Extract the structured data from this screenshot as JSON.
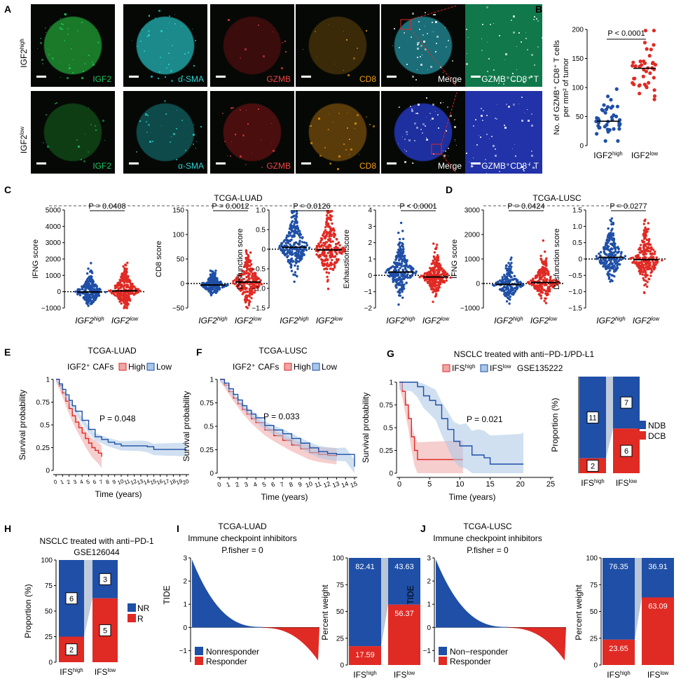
{
  "colors": {
    "blue": "#1f4fa6",
    "red": "#e02a24",
    "light_blue": "#a9c7e6",
    "light_red": "#eea6a6",
    "gray": "#b9c6d8"
  },
  "panels": {
    "A": {
      "letter": "A",
      "rows": [
        {
          "label_main": "IGF2",
          "label_sup": "high",
          "tiles": [
            {
              "label": "IGF2",
              "color": "#22c55e",
              "tint": "#1a7a2a",
              "fill": 0.55
            },
            {
              "label": "α-SMA",
              "color": "#2dd4d4",
              "tint": "#1c8a8a",
              "fill": 0.5
            },
            {
              "label": "GZMB",
              "color": "#ef4444",
              "tint": "#3a0c0c",
              "fill": 0.05
            },
            {
              "label": "CD8",
              "color": "#f59e0b",
              "tint": "#3a2a08",
              "fill": 0.06
            },
            {
              "label": "Merge",
              "color": "#ffffff",
              "tint": "#1b6e78",
              "fill": 0.6
            },
            {
              "label": "GZMB⁺CD8⁺ T",
              "color": "#ffffff",
              "tint": "#10784a",
              "fill": 0.8
            }
          ]
        },
        {
          "label_main": "IGF2",
          "label_sup": "low",
          "tiles": [
            {
              "label": "IGF2",
              "color": "#22c55e",
              "tint": "#0e3d14",
              "fill": 0.15
            },
            {
              "label": "α-SMA",
              "color": "#2dd4d4",
              "tint": "#0e4a4a",
              "fill": 0.3
            },
            {
              "label": "GZMB",
              "color": "#ef4444",
              "tint": "#4a0e0e",
              "fill": 0.25
            },
            {
              "label": "CD8",
              "color": "#f59e0b",
              "tint": "#5a3c0a",
              "fill": 0.35
            },
            {
              "label": "Merge",
              "color": "#ffffff",
              "tint": "#1e2fa0",
              "fill": 0.75
            },
            {
              "label": "GZMB⁺CD8⁺ T",
              "color": "#ffffff",
              "tint": "#2232a8",
              "fill": 0.85
            }
          ]
        }
      ]
    },
    "B": {
      "letter": "B",
      "ylabel_line1": "No. of GZMB⁺ CD8⁺ T cells",
      "ylabel_line2": "per mm² of tumor",
      "pvalue": "P < 0.0001",
      "groups": [
        {
          "main": "IGF2",
          "sup": "high"
        },
        {
          "main": "IGF2",
          "sup": "low"
        }
      ],
      "yticks": [
        "0",
        "50",
        "100",
        "150",
        "200"
      ]
    },
    "C": {
      "letter": "C",
      "title": "TCGA-LUAD"
    },
    "D": {
      "letter": "D",
      "title": "TCGA-LUSC"
    },
    "E": {
      "letter": "E",
      "title": "TCGA-LUAD",
      "legend_title": "IGF2⁺ CAFs",
      "legend_high": "High",
      "legend_low": "Low",
      "pvalue": "P = 0.048",
      "ylabel": "Survival probability",
      "xlabel": "Time (years)"
    },
    "F": {
      "letter": "F",
      "title": "TCGA-LUSC",
      "legend_title": "IGF2⁺ CAFs",
      "legend_high": "High",
      "legend_low": "Low",
      "pvalue": "P = 0.033",
      "ylabel": "Survival probability",
      "xlabel": "Time (years)"
    },
    "G": {
      "letter": "G",
      "title": "NSCLC treated with anti−PD-1/PD-L1",
      "legend_high": "IFS",
      "legend_high_sup": "high",
      "legend_low": "IFS",
      "legend_low_sup": "low",
      "dataset": "GSE135222",
      "pvalue": "P = 0.021",
      "ylabel": "Survival probability",
      "xlabel": "Time (years)",
      "bar_ylabel": "Proportion (%)",
      "bar_legend": [
        "NDB",
        "DCB"
      ]
    },
    "H": {
      "letter": "H",
      "title": "NSCLC treated with anti−PD-1",
      "dataset": "GSE126044",
      "ylabel": "Proportion (%)",
      "legend": [
        "NR",
        "R"
      ]
    },
    "I": {
      "letter": "I",
      "title": "TCGA-LUAD",
      "subtitle": "Immune checkpoint inhibitors",
      "fisher": "P.fisher = 0",
      "ylabel": "TIDE",
      "legend": [
        "Nonresponder",
        "Responder"
      ],
      "bar_ylabel": "Percent weight"
    },
    "J": {
      "letter": "J",
      "title": "TCGA-LUSC",
      "subtitle": "Immune checkpoint inhibitors",
      "fisher": "P.fisher = 0",
      "ylabel": "TIDE",
      "legend": [
        "Non−responder",
        "Responder"
      ],
      "bar_ylabel": "Percent weight"
    }
  },
  "chart_data": [
    {
      "id": "B",
      "type": "scatter",
      "ylabel": "No. of GZMB⁺ CD8⁺ T cells per mm² of tumor",
      "categories": [
        "IGF2high",
        "IGF2low"
      ],
      "ylim": [
        0,
        200
      ],
      "yticks": [
        0,
        50,
        100,
        150,
        200
      ],
      "median": [
        42,
        133
      ],
      "pvalue": "P < 0.0001"
    },
    {
      "id": "C1",
      "type": "scatter",
      "ylabel": "IFNG score",
      "categories": [
        "IGF2high",
        "IGF2low"
      ],
      "ylim": [
        -1000,
        5000
      ],
      "yticks": [
        -1000,
        0,
        1000,
        2000,
        3000,
        4000,
        5000
      ],
      "median": [
        -20,
        50
      ],
      "pvalue": "P = 0.0408"
    },
    {
      "id": "C2",
      "type": "scatter",
      "ylabel": "CD8 score",
      "categories": [
        "IGF2high",
        "IGF2low"
      ],
      "ylim": [
        -50,
        150
      ],
      "yticks": [
        -50,
        0,
        50,
        100,
        150
      ],
      "median": [
        -3,
        3
      ],
      "pvalue": "P = 0.0012"
    },
    {
      "id": "C3",
      "type": "scatter",
      "ylabel": "Dysfunction score",
      "categories": [
        "IGF2high",
        "IGF2low"
      ],
      "ylim": [
        -1.5,
        1.0
      ],
      "yticks": [
        -1.5,
        -1.0,
        -0.5,
        0,
        0.5,
        1.0
      ],
      "median": [
        0.05,
        -0.02
      ],
      "pvalue": "P = 0.0126"
    },
    {
      "id": "C4",
      "type": "scatter",
      "ylabel": "Exhaustion score",
      "categories": [
        "IGF2high",
        "IGF2low"
      ],
      "ylim": [
        -2,
        4
      ],
      "yticks": [
        -2,
        -1,
        0,
        1,
        2,
        3,
        4
      ],
      "median": [
        0.2,
        -0.1
      ],
      "pvalue": "P < 0.0001"
    },
    {
      "id": "D1",
      "type": "scatter",
      "ylabel": "IFNG score",
      "categories": [
        "IGF2high",
        "IGF2low"
      ],
      "ylim": [
        -1000,
        3000
      ],
      "yticks": [
        -1000,
        0,
        1000,
        2000,
        3000
      ],
      "median": [
        -40,
        40
      ],
      "pvalue": "P = 0.0424"
    },
    {
      "id": "D2",
      "type": "scatter",
      "ylabel": "Dysfunction score",
      "categories": [
        "IGF2high",
        "IGF2low"
      ],
      "ylim": [
        -1.5,
        1.5
      ],
      "yticks": [
        -1.5,
        -1.0,
        -0.5,
        0,
        0.5,
        1.0,
        1.5
      ],
      "median": [
        0.05,
        -0.02
      ],
      "pvalue": "P = 0.0277"
    },
    {
      "id": "E",
      "type": "line",
      "ylabel": "Survival probability",
      "xlabel": "Time (years)",
      "xlim": [
        0,
        20
      ],
      "ylim": [
        0,
        1
      ],
      "xticks": [
        0,
        1,
        2,
        3,
        4,
        5,
        6,
        7,
        8,
        9,
        10,
        11,
        12,
        13,
        14,
        15,
        16,
        17,
        18,
        19,
        20
      ],
      "yticks": [
        0,
        0.25,
        0.5,
        0.75,
        1
      ],
      "series": [
        {
          "name": "High",
          "x": [
            0,
            0.5,
            1,
            1.5,
            2,
            2.5,
            3,
            3.5,
            4,
            4.5,
            5,
            5.5,
            6,
            6.5,
            7
          ],
          "y": [
            1,
            0.93,
            0.85,
            0.76,
            0.68,
            0.6,
            0.53,
            0.47,
            0.41,
            0.35,
            0.3,
            0.25,
            0.22,
            0.19,
            0.15
          ]
        },
        {
          "name": "Low",
          "x": [
            0,
            0.5,
            1,
            1.5,
            2,
            2.5,
            3,
            4,
            5,
            6,
            7,
            8,
            9,
            10,
            11,
            12,
            13,
            14,
            15,
            16,
            17,
            18,
            19,
            20
          ],
          "y": [
            1,
            0.95,
            0.89,
            0.83,
            0.77,
            0.71,
            0.65,
            0.55,
            0.45,
            0.37,
            0.34,
            0.31,
            0.29,
            0.27,
            0.27,
            0.27,
            0.27,
            0.26,
            0.23,
            0.23,
            0.23,
            0.23,
            0.23,
            0.23
          ]
        }
      ]
    },
    {
      "id": "F",
      "type": "line",
      "ylabel": "Survival probability",
      "xlabel": "Time (years)",
      "xlim": [
        0,
        15
      ],
      "ylim": [
        0,
        1
      ],
      "xticks": [
        0,
        1,
        2,
        3,
        4,
        5,
        6,
        7,
        8,
        9,
        10,
        11,
        12,
        13,
        14,
        15
      ],
      "yticks": [
        0,
        0.25,
        0.5,
        0.75,
        1
      ],
      "series": [
        {
          "name": "High",
          "x": [
            0,
            0.5,
            1,
            1.5,
            2,
            2.5,
            3,
            3.5,
            4,
            5,
            6,
            7,
            8,
            9,
            10,
            11,
            12,
            13
          ],
          "y": [
            1,
            0.94,
            0.87,
            0.8,
            0.74,
            0.68,
            0.63,
            0.58,
            0.54,
            0.46,
            0.4,
            0.35,
            0.3,
            0.26,
            0.22,
            0.2,
            0.19,
            0.18
          ]
        },
        {
          "name": "Low",
          "x": [
            0,
            0.5,
            1,
            1.5,
            2,
            2.5,
            3,
            3.5,
            4,
            5,
            6,
            7,
            8,
            9,
            10,
            11,
            12,
            13,
            14,
            15
          ],
          "y": [
            1,
            0.96,
            0.9,
            0.84,
            0.78,
            0.72,
            0.67,
            0.63,
            0.59,
            0.51,
            0.46,
            0.42,
            0.37,
            0.32,
            0.27,
            0.23,
            0.21,
            0.2,
            0.2,
            0.07
          ]
        }
      ]
    },
    {
      "id": "G",
      "type": "line",
      "ylabel": "Survival probability",
      "xlabel": "Time (years)",
      "xlim": [
        0,
        25
      ],
      "ylim": [
        0,
        1
      ],
      "xticks": [
        0,
        5,
        10,
        15,
        20,
        25
      ],
      "yticks": [
        0,
        0.25,
        0.5,
        0.75,
        1
      ],
      "series": [
        {
          "name": "IFShigh",
          "x": [
            0,
            0.5,
            1,
            1.5,
            2,
            2.5,
            3,
            10.5
          ],
          "y": [
            1,
            0.9,
            0.75,
            0.6,
            0.4,
            0.25,
            0.15,
            0.15
          ]
        },
        {
          "name": "IFSlow",
          "x": [
            0,
            2,
            3,
            4,
            5,
            6,
            7,
            8,
            9,
            10,
            11,
            12,
            13,
            14,
            15,
            20,
            20.5
          ],
          "y": [
            1,
            1,
            0.95,
            0.85,
            0.8,
            0.75,
            0.6,
            0.48,
            0.35,
            0.3,
            0.3,
            0.2,
            0.2,
            0.17,
            0.1,
            0.1,
            0.1
          ]
        }
      ]
    },
    {
      "id": "G-bar",
      "type": "bar",
      "ylabel": "Proportion (%)",
      "categories": [
        "IFShigh",
        "IFSlow"
      ],
      "ylim": [
        0,
        100
      ],
      "series": [
        {
          "name": "DCB",
          "values": [
            15.4,
            46.2
          ],
          "counts": [
            2,
            6
          ]
        },
        {
          "name": "NDB",
          "values": [
            84.6,
            53.8
          ],
          "counts": [
            11,
            7
          ]
        }
      ]
    },
    {
      "id": "H",
      "type": "bar",
      "ylabel": "Proportion (%)",
      "categories": [
        "IFShigh",
        "IFSlow"
      ],
      "ylim": [
        0,
        100
      ],
      "yticks": [
        0,
        25,
        50,
        75,
        100
      ],
      "series": [
        {
          "name": "R",
          "values": [
            25,
            62.5
          ],
          "counts": [
            2,
            5
          ]
        },
        {
          "name": "NR",
          "values": [
            75,
            37.5
          ],
          "counts": [
            6,
            3
          ]
        }
      ]
    },
    {
      "id": "I",
      "type": "bar",
      "ylabel": "TIDE",
      "ylim": [
        -1.5,
        3
      ],
      "yticks": [
        -1,
        0,
        1,
        2,
        3
      ],
      "n_nonresponder": 350,
      "n_responder": 280,
      "max": 2.9,
      "min": -1.4
    },
    {
      "id": "I-bar",
      "type": "bar",
      "ylabel": "Percent weight",
      "categories": [
        "IFShigh",
        "IFSlow"
      ],
      "ylim": [
        0,
        100
      ],
      "yticks": [
        0,
        25,
        50,
        75,
        100
      ],
      "series": [
        {
          "name": "Responder",
          "values": [
            17.59,
            56.37
          ]
        },
        {
          "name": "Nonresponder",
          "values": [
            82.41,
            43.63
          ]
        }
      ]
    },
    {
      "id": "J",
      "type": "bar",
      "ylabel": "TIDE",
      "ylim": [
        -1.5,
        3
      ],
      "yticks": [
        -1,
        0,
        1,
        2,
        3
      ],
      "n_nonresponder": 300,
      "n_responder": 250,
      "max": 2.9,
      "min": -1.4
    },
    {
      "id": "J-bar",
      "type": "bar",
      "ylabel": "Percent weight",
      "categories": [
        "IFShigh",
        "IFSlow"
      ],
      "ylim": [
        0,
        100
      ],
      "yticks": [
        0,
        25,
        50,
        75,
        100
      ],
      "series": [
        {
          "name": "Responder",
          "values": [
            23.65,
            63.09
          ]
        },
        {
          "name": "Non−responder",
          "values": [
            76.35,
            36.91
          ]
        }
      ]
    }
  ]
}
